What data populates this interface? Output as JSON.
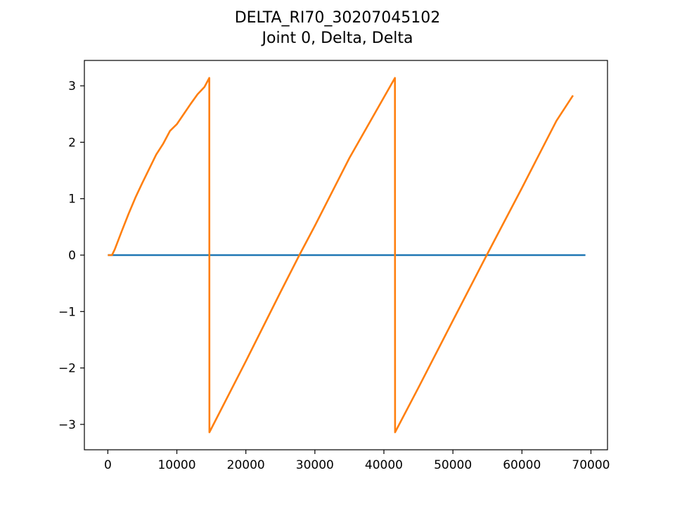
{
  "chart_data": {
    "type": "line",
    "title": "DELTA_RI70_30207045102",
    "subtitle": "Joint 0, Delta, Delta",
    "xlabel": "",
    "ylabel": "",
    "xlim": [
      -3400,
      72400
    ],
    "ylim": [
      -3.45,
      3.45
    ],
    "x_ticks": [
      0,
      10000,
      20000,
      30000,
      40000,
      50000,
      60000,
      70000
    ],
    "x_tick_labels": [
      "0",
      "10000",
      "20000",
      "30000",
      "40000",
      "50000",
      "60000",
      "70000"
    ],
    "y_ticks": [
      3,
      2,
      1,
      0,
      -1,
      -2,
      -3
    ],
    "y_tick_labels": [
      "3",
      "2",
      "1",
      "0",
      "−1",
      "−2",
      "−3"
    ],
    "grid": false,
    "legend": "none",
    "series": [
      {
        "color": "#1f77b4",
        "points": [
          [
            0,
            0
          ],
          [
            69200,
            0
          ]
        ]
      },
      {
        "color": "#ff7f0e",
        "points": [
          [
            0,
            0
          ],
          [
            600,
            0
          ],
          [
            1000,
            0.1
          ],
          [
            2000,
            0.42
          ],
          [
            3000,
            0.73
          ],
          [
            4000,
            1.02
          ],
          [
            5000,
            1.28
          ],
          [
            6000,
            1.53
          ],
          [
            7000,
            1.78
          ],
          [
            8000,
            1.97
          ],
          [
            9000,
            2.2
          ],
          [
            10000,
            2.32
          ],
          [
            11000,
            2.5
          ],
          [
            12000,
            2.68
          ],
          [
            13000,
            2.85
          ],
          [
            14000,
            2.98
          ],
          [
            14700,
            3.14
          ],
          [
            14720,
            -3.14
          ],
          [
            20000,
            -1.88
          ],
          [
            25000,
            -0.66
          ],
          [
            27750,
            0.0
          ],
          [
            30000,
            0.52
          ],
          [
            35000,
            1.72
          ],
          [
            41600,
            3.14
          ],
          [
            41620,
            -3.14
          ],
          [
            45000,
            -2.35
          ],
          [
            50000,
            -1.16
          ],
          [
            54900,
            0.0
          ],
          [
            60000,
            1.19
          ],
          [
            65000,
            2.38
          ],
          [
            67400,
            2.83
          ]
        ]
      }
    ]
  }
}
